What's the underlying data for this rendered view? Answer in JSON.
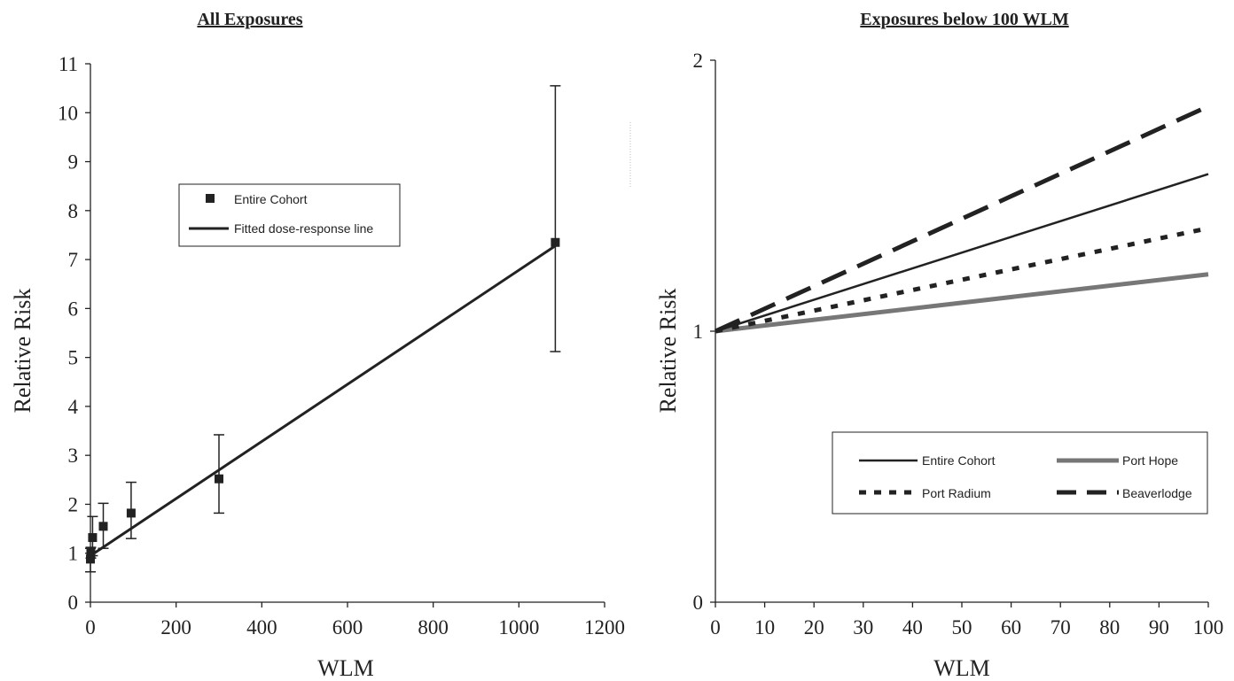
{
  "chart_data": [
    {
      "type": "scatter",
      "title": "All Exposures",
      "xlabel": "WLM",
      "ylabel": "Relative Risk",
      "xlim": [
        0,
        1200
      ],
      "ylim": [
        0,
        11
      ],
      "xticks": [
        "0",
        "200",
        "400",
        "600",
        "800",
        "1000",
        "1200"
      ],
      "yticks": [
        "0",
        "1",
        "2",
        "3",
        "4",
        "5",
        "6",
        "7",
        "8",
        "9",
        "10",
        "11"
      ],
      "legend_position": "upper-left",
      "series": [
        {
          "name": "Entire Cohort",
          "marker": "square",
          "points": [
            {
              "x": 0,
              "y": 0.88,
              "lo": 0.62,
              "hi": 1.1
            },
            {
              "x": 1,
              "y": 1.0,
              "lo": 0.9,
              "hi": 1.12
            },
            {
              "x": 5,
              "y": 1.32,
              "lo": 0.95,
              "hi": 1.75
            },
            {
              "x": 30,
              "y": 1.55,
              "lo": 1.1,
              "hi": 2.02
            },
            {
              "x": 95,
              "y": 1.82,
              "lo": 1.3,
              "hi": 2.45
            },
            {
              "x": 300,
              "y": 2.52,
              "lo": 1.82,
              "hi": 3.42
            },
            {
              "x": 1085,
              "y": 7.35,
              "lo": 5.12,
              "hi": 10.55
            }
          ]
        },
        {
          "name": "Fitted dose-response line",
          "style": "solid",
          "line": [
            [
              0,
              0.95
            ],
            [
              1085,
              7.28
            ]
          ]
        }
      ]
    },
    {
      "type": "line",
      "title": "Exposures below 100 WLM",
      "xlabel": "WLM",
      "ylabel": "Relative Risk",
      "xlim": [
        0,
        100
      ],
      "ylim": [
        0,
        2
      ],
      "xticks": [
        "0",
        "10",
        "20",
        "30",
        "40",
        "50",
        "60",
        "70",
        "80",
        "90",
        "100"
      ],
      "yticks": [
        "0",
        "1",
        "2"
      ],
      "legend_position": "lower-right",
      "series": [
        {
          "name": "Entire Cohort",
          "style": "solid",
          "x": [
            0,
            100
          ],
          "y": [
            1.0,
            1.58
          ]
        },
        {
          "name": "Port Hope",
          "style": "gray-thick",
          "x": [
            0,
            100
          ],
          "y": [
            1.0,
            1.21
          ]
        },
        {
          "name": "Port Radium",
          "style": "dotted",
          "x": [
            0,
            100
          ],
          "y": [
            1.0,
            1.38
          ]
        },
        {
          "name": "Beaverlodge",
          "style": "dashed",
          "x": [
            0,
            100
          ],
          "y": [
            1.0,
            1.83
          ]
        }
      ]
    }
  ]
}
